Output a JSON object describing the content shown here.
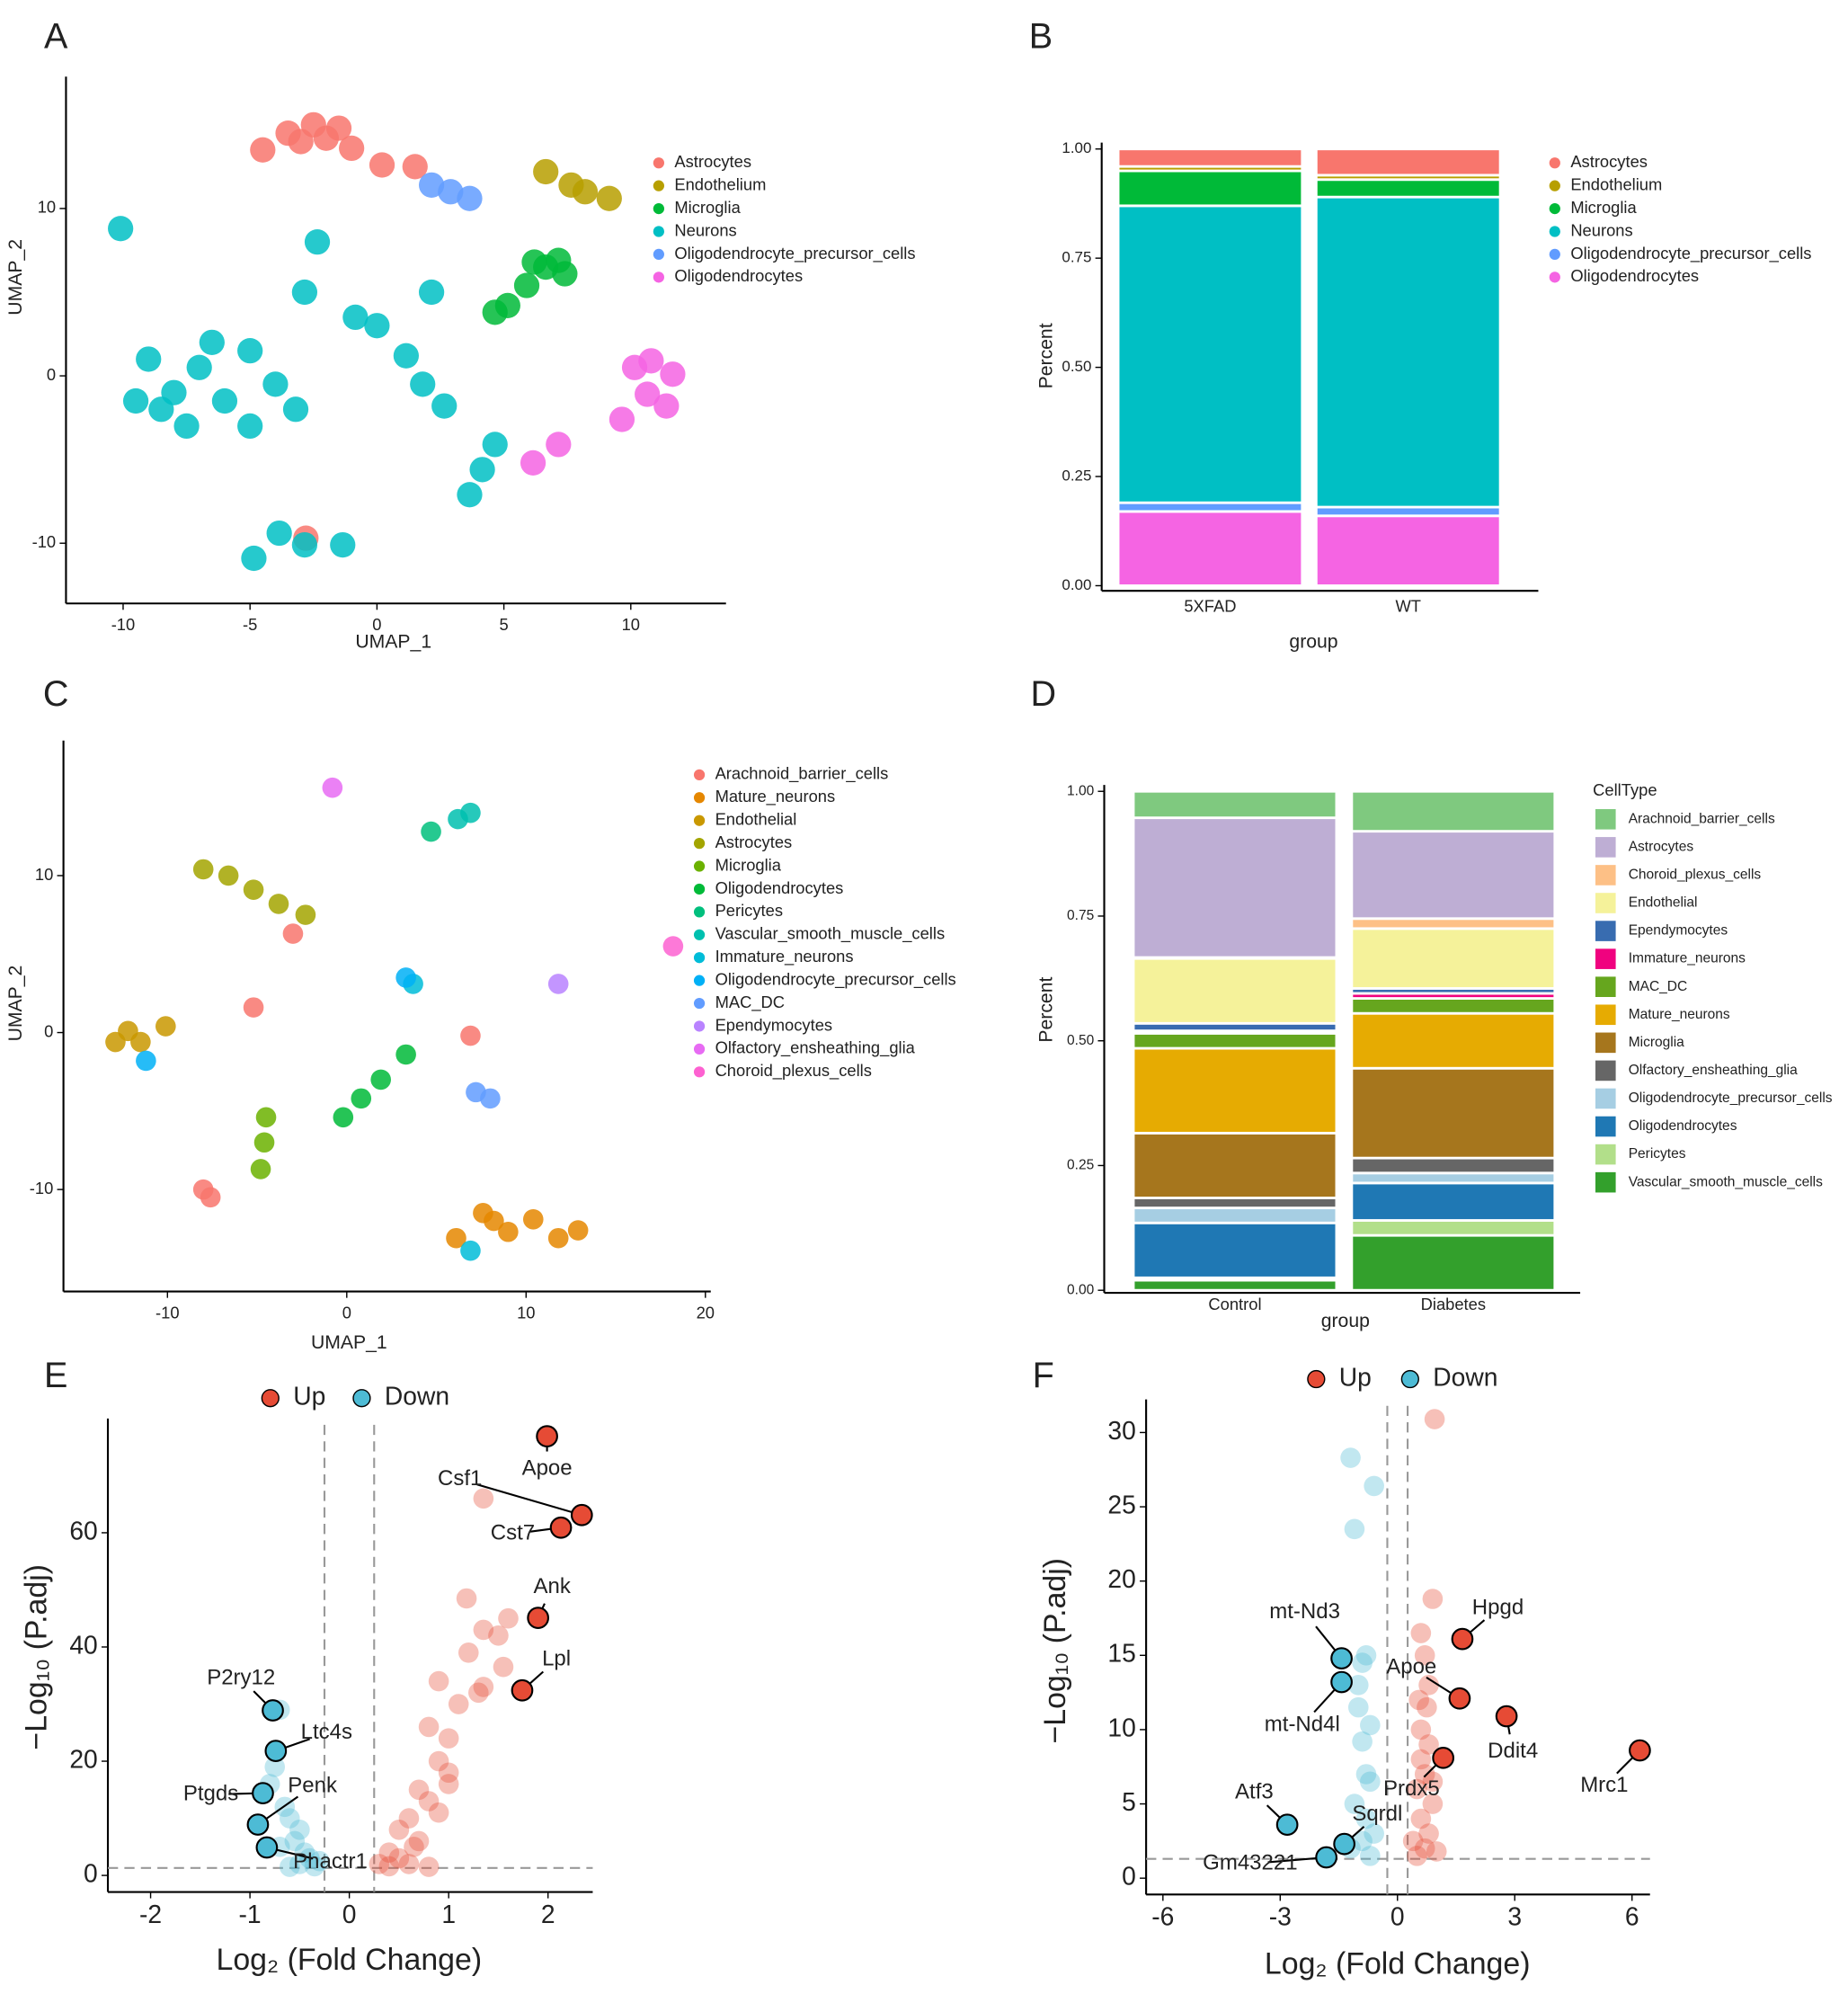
{
  "chart_data": [
    {
      "type": "scatter",
      "panel": "A",
      "x_label": "UMAP_1",
      "y_label": "UMAP_2",
      "xlim": [
        -12.25,
        13.75
      ],
      "ylim": [
        -13.6,
        17.5
      ],
      "xticks": [
        -10,
        -5,
        0,
        5,
        10
      ],
      "yticks": [
        -10,
        0,
        10
      ],
      "series": [
        {
          "name": "Astrocytes",
          "color": "#F8766D",
          "x": [
            -3.5,
            -2.5,
            -1.5,
            -3,
            -2,
            -4.5,
            -1,
            0.2,
            1.5,
            -2.8
          ],
          "values": [
            14.5,
            15,
            14.8,
            14,
            14.2,
            13.5,
            13.6,
            12.6,
            12.5,
            -9.7
          ]
        },
        {
          "name": "Endothelium",
          "color": "#B79F00",
          "x": [
            6.65,
            7.65,
            9.15,
            8.2
          ],
          "values": [
            12.2,
            11.4,
            10.6,
            11
          ]
        },
        {
          "name": "Microglia",
          "color": "#00BA38",
          "x": [
            6.65,
            7.15,
            5.9,
            5.15,
            4.65,
            7.4,
            6.2
          ],
          "values": [
            6.5,
            6.9,
            5.4,
            4.2,
            3.8,
            6.1,
            6.8
          ]
        },
        {
          "name": "Neurons",
          "color": "#00BFC4",
          "x": [
            -9,
            -8,
            -7,
            -6,
            -5,
            -4,
            -8.5,
            -6.5,
            -5,
            -3.2,
            -9.5,
            -7.5,
            -0.85,
            1.15,
            2.65,
            4.15,
            3.65,
            -2.85,
            -2.35,
            -2.85,
            -4.85,
            -1.35,
            -3.85,
            -10.1,
            2.15,
            4.65,
            0,
            1.8
          ],
          "values": [
            1,
            -1,
            0.5,
            -1.5,
            1.5,
            -0.5,
            -2,
            2,
            -3,
            -2,
            -1.5,
            -3,
            3.5,
            1.2,
            -1.8,
            -5.6,
            -7.1,
            5,
            8,
            -10.1,
            -10.9,
            -10.1,
            -9.4,
            8.8,
            5,
            -4.1,
            3,
            -0.5
          ]
        },
        {
          "name": "Oligodendrocyte_precursor_cells",
          "color": "#619CFF",
          "x": [
            2.15,
            2.9,
            3.65
          ],
          "values": [
            11.4,
            11,
            10.6
          ]
        },
        {
          "name": "Oligodendrocytes",
          "color": "#F564E3",
          "x": [
            10.65,
            10.15,
            11.4,
            9.65,
            11.65,
            7.15,
            6.15,
            10.8
          ],
          "values": [
            -1.1,
            0.5,
            -1.8,
            -2.6,
            0.1,
            -4.1,
            -5.2,
            0.9
          ]
        }
      ]
    },
    {
      "type": "stacked_bar",
      "panel": "B",
      "x_label": "group",
      "y_label": "Percent",
      "categories": [
        "5XFAD",
        "WT"
      ],
      "ylim": [
        0,
        1
      ],
      "yticks": [
        {
          "value": 0,
          "label": "0.00"
        },
        {
          "value": 0.25,
          "label": "0.25"
        },
        {
          "value": 0.5,
          "label": "0.50"
        },
        {
          "value": 0.75,
          "label": "0.75"
        },
        {
          "value": 1,
          "label": "1.00"
        }
      ],
      "series": [
        {
          "name": "Astrocytes",
          "color": "#F8766D",
          "values": [
            0.04,
            0.06
          ]
        },
        {
          "name": "Endothelium",
          "color": "#B79F00",
          "values": [
            0.01,
            0.01
          ]
        },
        {
          "name": "Microglia",
          "color": "#00BA38",
          "values": [
            0.08,
            0.04
          ]
        },
        {
          "name": "Neurons",
          "color": "#00BFC4",
          "values": [
            0.68,
            0.71
          ]
        },
        {
          "name": "Oligodendrocyte_precursor_cells",
          "color": "#619CFF",
          "values": [
            0.02,
            0.02
          ]
        },
        {
          "name": "Oligodendrocytes",
          "color": "#F564E3",
          "values": [
            0.17,
            0.16
          ]
        }
      ]
    },
    {
      "type": "scatter",
      "panel": "C",
      "x_label": "UMAP_1",
      "y_label": "UMAP_2",
      "xlim": [
        -15.8,
        20.3
      ],
      "ylim": [
        -16.5,
        18.2
      ],
      "xticks": [
        -10,
        0,
        10,
        20
      ],
      "yticks": [
        -10,
        0,
        10
      ],
      "series": [
        {
          "name": "Arachnoid_barrier_cells",
          "color": "#F8766D",
          "x": [
            -8,
            -5.2,
            6.9,
            -3,
            -7.6
          ],
          "values": [
            -10,
            1.6,
            -0.2,
            6.3,
            -10.5
          ]
        },
        {
          "name": "Mature_neurons",
          "color": "#E58700",
          "x": [
            9,
            10.4,
            11.8,
            6.1,
            7.6,
            12.9,
            8.2
          ],
          "values": [
            -12.7,
            -11.9,
            -13.1,
            -13.1,
            -11.5,
            -12.6,
            -12
          ]
        },
        {
          "name": "Endothelial",
          "color": "#C99800",
          "x": [
            -11.5,
            -12.9,
            -10.1,
            -12.2
          ],
          "values": [
            -0.6,
            -0.6,
            0.4,
            0.1
          ]
        },
        {
          "name": "Astrocytes",
          "color": "#A3A500",
          "x": [
            -8,
            -5.2,
            -2.3,
            -6.6,
            -3.8
          ],
          "values": [
            10.4,
            9.1,
            7.5,
            10,
            8.2
          ]
        },
        {
          "name": "Microglia",
          "color": "#6BB100",
          "x": [
            -4.5,
            -4.8,
            -4.6
          ],
          "values": [
            -5.4,
            -8.7,
            -7
          ]
        },
        {
          "name": "Oligodendrocytes",
          "color": "#00BA38",
          "x": [
            1.9,
            3.3,
            -0.2,
            0.8
          ],
          "values": [
            -3,
            -1.4,
            -5.4,
            -4.2
          ]
        },
        {
          "name": "Pericytes",
          "color": "#00BF7D",
          "x": [
            4.7
          ],
          "values": [
            12.8
          ]
        },
        {
          "name": "Vascular_smooth_muscle_cells",
          "color": "#00C0AF",
          "x": [
            6.2,
            6.9
          ],
          "values": [
            13.6,
            14
          ]
        },
        {
          "name": "Immature_neurons",
          "color": "#00BCD8",
          "x": [
            3.7,
            6.9
          ],
          "values": [
            3.1,
            -13.9
          ]
        },
        {
          "name": "Oligodendrocyte_precursor_cells",
          "color": "#00B0F6",
          "x": [
            3.3,
            -11.2
          ],
          "values": [
            3.5,
            -1.8
          ]
        },
        {
          "name": "MAC_DC",
          "color": "#619CFF",
          "x": [
            7.2,
            8
          ],
          "values": [
            -3.8,
            -4.2
          ]
        },
        {
          "name": "Ependymocytes",
          "color": "#B983FF",
          "x": [
            11.8
          ],
          "values": [
            3.1
          ]
        },
        {
          "name": "Olfactory_ensheathing_glia",
          "color": "#E76BF3",
          "x": [
            -0.8
          ],
          "values": [
            15.6
          ]
        },
        {
          "name": "Choroid_plexus_cells",
          "color": "#FD61D1",
          "x": [
            18.2
          ],
          "values": [
            5.5
          ]
        }
      ]
    },
    {
      "type": "stacked_bar",
      "panel": "D",
      "x_label": "group",
      "y_label": "Percent",
      "legend_title": "CellType",
      "categories": [
        "Control",
        "Diabetes"
      ],
      "ylim": [
        0,
        1
      ],
      "yticks": [
        {
          "value": 0,
          "label": "0.00"
        },
        {
          "value": 0.25,
          "label": "0.25"
        },
        {
          "value": 0.5,
          "label": "0.50"
        },
        {
          "value": 0.75,
          "label": "0.75"
        },
        {
          "value": 1,
          "label": "1.00"
        }
      ],
      "series": [
        {
          "name": "Arachnoid_barrier_cells",
          "color": "#7FC97F",
          "values": [
            0.053,
            0.08
          ]
        },
        {
          "name": "Astrocytes",
          "color": "#BEAED4",
          "values": [
            0.28,
            0.175
          ]
        },
        {
          "name": "Choroid_plexus_cells",
          "color": "#FDC086",
          "values": [
            0.002,
            0.02
          ]
        },
        {
          "name": "Endothelial",
          "color": "#F5F29A",
          "values": [
            0.13,
            0.12
          ]
        },
        {
          "name": "Ependymocytes",
          "color": "#386CB0",
          "values": [
            0.015,
            0.01
          ]
        },
        {
          "name": "Immature_neurons",
          "color": "#F0027F",
          "values": [
            0.005,
            0.01
          ]
        },
        {
          "name": "MAC_DC",
          "color": "#66A61E",
          "values": [
            0.03,
            0.03
          ]
        },
        {
          "name": "Mature_neurons",
          "color": "#E6AB02",
          "values": [
            0.17,
            0.11
          ]
        },
        {
          "name": "Microglia",
          "color": "#A6761D",
          "values": [
            0.13,
            0.18
          ]
        },
        {
          "name": "Olfactory_ensheathing_glia",
          "color": "#666666",
          "values": [
            0.02,
            0.03
          ]
        },
        {
          "name": "Oligodendrocyte_precursor_cells",
          "color": "#A6CEE3",
          "values": [
            0.03,
            0.02
          ]
        },
        {
          "name": "Oligodendrocytes",
          "color": "#1F78B4",
          "values": [
            0.11,
            0.075
          ]
        },
        {
          "name": "Pericytes",
          "color": "#B2DF8A",
          "values": [
            0.005,
            0.03
          ]
        },
        {
          "name": "Vascular_smooth_muscle_cells",
          "color": "#33A02C",
          "values": [
            0.02,
            0.11
          ]
        }
      ]
    },
    {
      "type": "volcano",
      "panel": "E",
      "x_label": "Log₂ (Fold Change)",
      "y_label": "−Log₁₀ (P.adj)",
      "xlim": [
        -2.43,
        2.45
      ],
      "ylim": [
        -2.9,
        78.9
      ],
      "xticks": [
        -2,
        -1,
        0,
        1,
        2
      ],
      "yticks": [
        0,
        20,
        40,
        60
      ],
      "x_thresholds": [
        -0.25,
        0.25
      ],
      "y_threshold": 1.3,
      "series": [
        {
          "name": "Up",
          "color": "#E64B35",
          "labels": [
            "Apoe",
            "Csf1",
            "Cst7",
            "Ank",
            "Lpl"
          ],
          "x": [
            1.99,
            2.34,
            2.13,
            1.9,
            1.74
          ],
          "values": [
            76.9,
            63.1,
            60.9,
            45.1,
            32.4
          ],
          "background_x": [
            1.35,
            1.18,
            1.35,
            1.6,
            1.5,
            1.55,
            1.2,
            1.35,
            0.9,
            1.1,
            1.3,
            0.8,
            1,
            0.9,
            1,
            0.7,
            0.8,
            0.6,
            0.5,
            0.7,
            0.4,
            0.5,
            0.3,
            0.6,
            0.8,
            0.4,
            0.9,
            1,
            0.65
          ],
          "background_values": [
            66,
            48.5,
            43,
            45,
            42,
            36.5,
            39,
            33,
            34,
            30,
            32,
            26,
            24,
            20,
            18,
            15,
            13,
            10,
            8,
            6,
            4,
            3,
            2,
            2,
            1.5,
            1.6,
            11,
            16,
            5
          ]
        },
        {
          "name": "Down",
          "color": "#4DBBD5",
          "labels": [
            "P2ry12",
            "Ltc4s",
            "Ptgds",
            "Penk",
            "Phactr1"
          ],
          "x": [
            -0.77,
            -0.74,
            -0.87,
            -0.92,
            -0.83
          ],
          "values": [
            28.9,
            21.8,
            14.4,
            8.9,
            4.9
          ],
          "background_x": [
            -0.7,
            -0.75,
            -0.8,
            -0.65,
            -0.6,
            -0.5,
            -0.55,
            -0.7,
            -0.45,
            -0.4,
            -0.5,
            -0.35,
            -0.6,
            -0.3
          ],
          "background_values": [
            29,
            19,
            16,
            12,
            10,
            8,
            6,
            5,
            4,
            3,
            2,
            1.6,
            1.5,
            2.5
          ]
        }
      ]
    },
    {
      "type": "volcano",
      "panel": "F",
      "x_label": "Log₂ (Fold Change)",
      "y_label": "−Log₁₀ (P.adj)",
      "xlim": [
        -6.43,
        6.46
      ],
      "ylim": [
        -1.1,
        31.8
      ],
      "xticks": [
        -6,
        -3,
        0,
        3,
        6
      ],
      "yticks": [
        0,
        5,
        10,
        15,
        20,
        25,
        30
      ],
      "x_thresholds": [
        -0.26,
        0.26
      ],
      "y_threshold": 1.3,
      "series": [
        {
          "name": "Up",
          "color": "#E64B35",
          "labels": [
            "Hpgd",
            "Apoe",
            "Ddit4",
            "Mrc1",
            "Prdx5"
          ],
          "x": [
            1.66,
            1.59,
            2.79,
            6.2,
            1.17
          ],
          "values": [
            16.1,
            12.1,
            10.9,
            8.6,
            8.1
          ],
          "background_x": [
            0.95,
            0.9,
            0.6,
            0.7,
            0.8,
            0.75,
            0.6,
            0.8,
            0.6,
            0.7,
            0.5,
            0.9,
            0.6,
            0.8,
            0.4,
            0.7,
            0.5,
            1,
            0.55,
            0.9
          ],
          "background_values": [
            30.9,
            18.8,
            16.5,
            15,
            13,
            11.5,
            10,
            9,
            8,
            7,
            6,
            5,
            4,
            3,
            2.5,
            2,
            1.5,
            1.8,
            12,
            6.5
          ]
        },
        {
          "name": "Down",
          "color": "#4DBBD5",
          "labels": [
            "mt-Nd3",
            "mt-Nd4l",
            "Atf3",
            "Sqrdl",
            "Gm43221"
          ],
          "x": [
            -1.43,
            -1.43,
            -2.82,
            -1.36,
            -1.82
          ],
          "values": [
            14.8,
            13.2,
            3.6,
            2.3,
            1.4
          ],
          "background_x": [
            -1.2,
            -0.6,
            -1.1,
            -0.8,
            -0.9,
            -1,
            -1,
            -0.7,
            -0.9,
            -0.8,
            -0.7,
            -1.1,
            -0.8,
            -0.6,
            -0.9,
            -0.7,
            -1.2
          ],
          "background_values": [
            28.3,
            26.4,
            23.5,
            15,
            14.5,
            13,
            11.5,
            10.3,
            9.2,
            7,
            6.5,
            5,
            4,
            3,
            2.5,
            1.5,
            2
          ]
        }
      ]
    }
  ]
}
